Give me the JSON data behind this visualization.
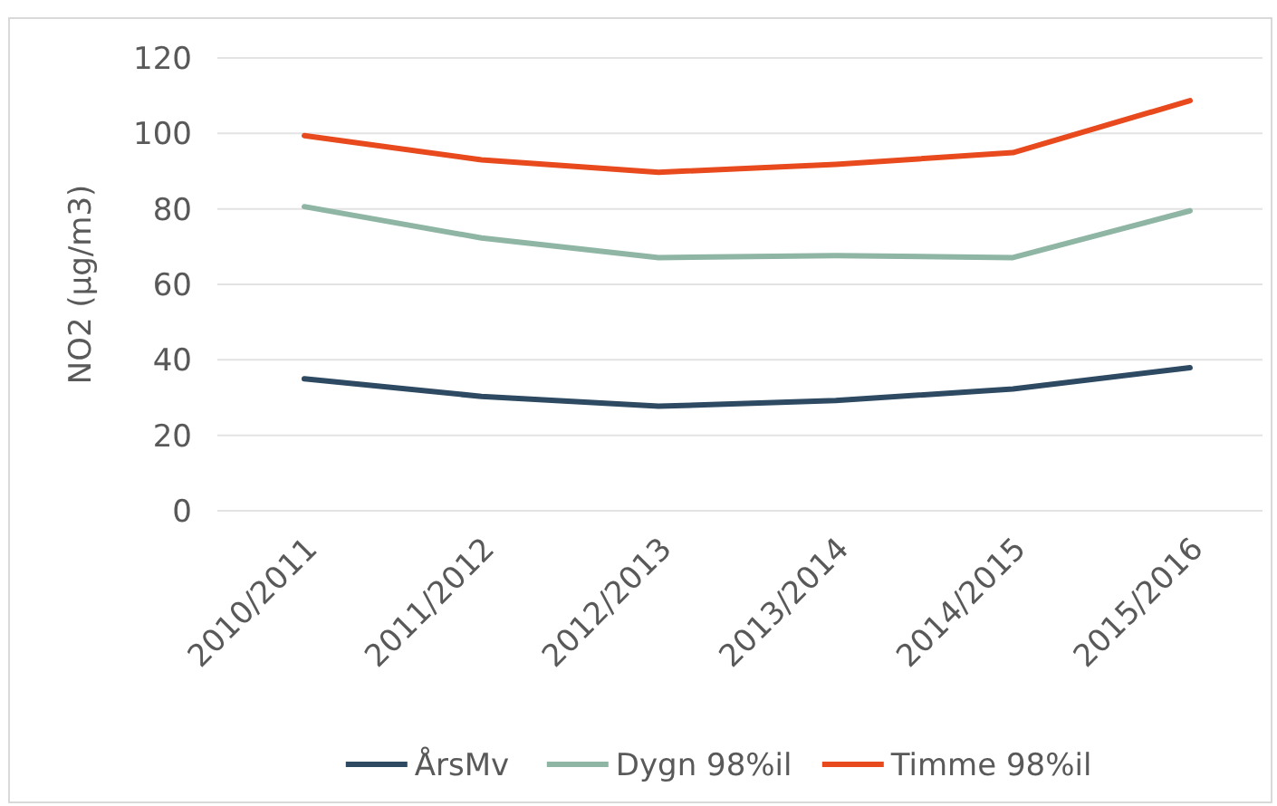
{
  "chart_data": {
    "type": "line",
    "ylabel": "NO2 (µg/m3)",
    "categories": [
      "2010/2011",
      "2011/2012",
      "2012/2013",
      "2013/2014",
      "2014/2015",
      "2015/2016"
    ],
    "series": [
      {
        "name": "ÅrsMv",
        "color": "#2e4a62",
        "values": [
          35,
          30.3,
          27.7,
          29.2,
          32.3,
          37.9
        ]
      },
      {
        "name": "Dygn 98%il",
        "color": "#8fb5a4",
        "values": [
          80.6,
          72.3,
          67.1,
          67.6,
          67.1,
          79.5
        ]
      },
      {
        "name": "Timme 98%il",
        "color": "#e8491d",
        "values": [
          99.4,
          93,
          89.7,
          91.8,
          94.9,
          108.7
        ]
      }
    ],
    "ylim": [
      0,
      120
    ],
    "yticks": [
      0,
      20,
      40,
      60,
      80,
      100,
      120
    ],
    "grid": "y",
    "legend": "bottom",
    "marker": "none",
    "line_style": "solid"
  }
}
